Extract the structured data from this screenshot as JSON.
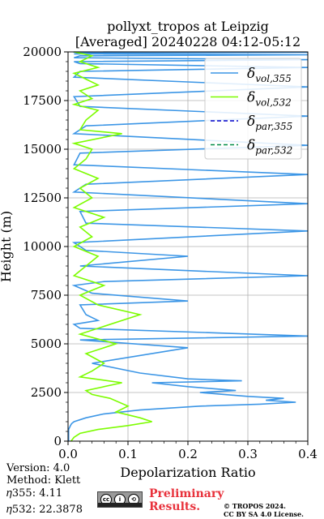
{
  "chart_data": {
    "type": "line",
    "title_line1": "pollyxt_tropos at Leipzig",
    "title_line2": "[Averaged] 20240228 04:12-05:12",
    "xlabel": "Depolarization Ratio",
    "ylabel": "Height (m)",
    "xlim": [
      0,
      0.4
    ],
    "ylim": [
      0,
      20000
    ],
    "xticks": [
      "0.0",
      "0.1",
      "0.2",
      "0.3",
      "0.4"
    ],
    "yticks": [
      "0",
      "2500",
      "5000",
      "7500",
      "10000",
      "12500",
      "15000",
      "17500",
      "20000"
    ],
    "grid": true,
    "legend_position": "top-right",
    "series": [
      {
        "name": "δvol,355",
        "legend_base": "δ",
        "legend_sub": "vol,355",
        "color": "#3c96e6",
        "dash": "solid",
        "x": [
          0.001,
          0.001,
          0.001,
          0.001,
          0.004,
          0.006,
          0.01,
          0.03,
          0.06,
          0.12,
          0.22,
          0.32,
          0.38,
          0.33,
          0.36,
          0.3,
          0.26,
          0.22,
          0.28,
          0.2,
          0.14,
          0.29,
          0.2,
          0.12,
          0.04,
          0.2,
          0.02,
          0.4,
          0.02,
          0.01,
          0.05,
          0.03,
          0.02,
          0.2,
          0.04,
          0.01,
          0.06,
          0.4,
          0.02,
          0.2,
          0.03,
          0.01,
          0.4,
          0.03,
          0.02,
          0.4,
          0.01,
          0.03,
          0.4,
          0.01,
          0.02,
          0.4,
          0.01,
          0.03,
          0.4,
          0.02,
          0.01,
          0.4,
          0.01,
          0.02,
          0.4,
          0.02,
          0.01,
          0.4,
          0.01,
          0.02,
          0.4,
          0.01,
          0.03,
          0.4,
          0.01,
          0.01
        ],
        "y": [
          0,
          200,
          400,
          600,
          800,
          900,
          1000,
          1200,
          1400,
          1600,
          1800,
          1900,
          2000,
          2100,
          2200,
          2300,
          2400,
          2500,
          2600,
          2800,
          3000,
          3100,
          3200,
          3500,
          4000,
          4800,
          5200,
          5400,
          5800,
          6000,
          6200,
          6500,
          7000,
          7200,
          7600,
          8000,
          8200,
          8500,
          9000,
          9500,
          9800,
          10200,
          10800,
          11200,
          11800,
          12200,
          12800,
          13200,
          13700,
          14200,
          14800,
          15200,
          15800,
          16200,
          16700,
          17200,
          17700,
          18200,
          18700,
          19000,
          19200,
          19400,
          19500,
          19600,
          19700,
          19800,
          19850,
          19900,
          19950,
          19980,
          19990,
          20000
        ]
      },
      {
        "name": "δvol,532",
        "legend_base": "δ",
        "legend_sub": "vol,532",
        "color": "#7cfc00",
        "dash": "solid",
        "x": [
          0.005,
          0.01,
          0.02,
          0.05,
          0.1,
          0.14,
          0.12,
          0.08,
          0.1,
          0.07,
          0.04,
          0.03,
          0.09,
          0.02,
          0.04,
          0.06,
          0.03,
          0.08,
          0.02,
          0.12,
          0.05,
          0.02,
          0.06,
          0.01,
          0.03,
          0.05,
          0.01,
          0.04,
          0.02,
          0.06,
          0.01,
          0.04,
          0.02,
          0.05,
          0.01,
          0.03,
          0.04,
          0.01,
          0.09,
          0.02,
          0.03,
          0.05,
          0.01,
          0.04,
          0.02,
          0.05,
          0.03,
          0.01,
          0.05,
          0.02,
          0.04,
          0.01
        ],
        "y": [
          0,
          200,
          400,
          600,
          800,
          1000,
          1200,
          1500,
          1800,
          2200,
          2400,
          2600,
          3000,
          3300,
          3600,
          4000,
          4500,
          5000,
          5500,
          6500,
          7000,
          7500,
          8000,
          8500,
          9000,
          9500,
          10000,
          10500,
          11000,
          11500,
          12000,
          12500,
          13000,
          13500,
          14000,
          14500,
          15000,
          15300,
          15800,
          16000,
          16500,
          17000,
          17300,
          17600,
          18000,
          18300,
          18600,
          18900,
          19200,
          19500,
          19800,
          20000
        ]
      },
      {
        "name": "δpar,355",
        "legend_base": "δ",
        "legend_sub": "par,355",
        "color": "#0000c8",
        "dash": "dashed",
        "x": [],
        "y": []
      },
      {
        "name": "δpar,532",
        "legend_base": "δ",
        "legend_sub": "par,532",
        "color": "#008c46",
        "dash": "dashed",
        "x": [],
        "y": []
      }
    ]
  },
  "footer": {
    "version": "Version: 4.0",
    "method": "Method: Klett",
    "eta355": "𝜂355:   4.11",
    "eta532": "𝜂532: 22.3878",
    "preliminary_1": "Preliminary",
    "preliminary_2": "Results.",
    "copyright_1": "© TROPOS 2024.",
    "copyright_2": "CC BY SA 4.0 License."
  },
  "badge": {
    "glyphs": [
      "cc",
      "i",
      "⟲"
    ],
    "text": "BY SA"
  }
}
